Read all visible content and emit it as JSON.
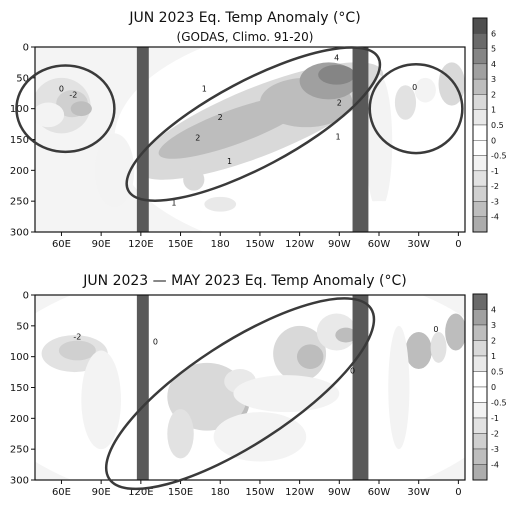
{
  "colors": {
    "anomaly_scale": [
      "#4d4d4d",
      "#6a6a6a",
      "#808080",
      "#999999",
      "#b3b3b3",
      "#cccccc",
      "#e3e3e3",
      "#ffffff",
      "#e6e6e6",
      "#d2d2d2",
      "#bdbdbd",
      "#a8a8a8",
      "#909090",
      "#747474",
      "#5a5a5a"
    ],
    "land_mask": "#595959",
    "contour": "#111111",
    "highlight_ellipse": "#3a3a3a"
  },
  "chart_data": [
    {
      "type": "heatmap",
      "title": "JUN 2023 Eq. Temp Anomaly (°C)",
      "subtitle": "(GODAS, Climo. 91-20)",
      "xlabel": "",
      "ylabel": "",
      "x_ticks": [
        "60E",
        "90E",
        "120E",
        "150E",
        "180",
        "150W",
        "120W",
        "90W",
        "60W",
        "30W",
        "0"
      ],
      "y_ticks": [
        "0",
        "50",
        "100",
        "150",
        "200",
        "250",
        "300"
      ],
      "ylim": [
        300,
        0
      ],
      "colorbar_ticks": [
        "6",
        "5",
        "4",
        "3",
        "2",
        "1",
        "0.5",
        "0",
        "-0.5",
        "-1",
        "-2",
        "-3",
        "-4"
      ],
      "contour_labels": [
        {
          "text": "0",
          "lon": 60,
          "depth": 72
        },
        {
          "text": "-2",
          "lon": 69,
          "depth": 82
        },
        {
          "text": "1",
          "lon": 168,
          "depth": 72
        },
        {
          "text": "2",
          "lon": 180,
          "depth": 118
        },
        {
          "text": "2",
          "lon": 163,
          "depth": 152
        },
        {
          "text": "1",
          "lon": 187,
          "depth": 190
        },
        {
          "text": "1",
          "lon": 145,
          "depth": 257
        },
        {
          "text": "4",
          "lon": 268,
          "depth": 22
        },
        {
          "text": "2",
          "lon": 270,
          "depth": 95
        },
        {
          "text": "1",
          "lon": 269,
          "depth": 150
        },
        {
          "text": "0",
          "lon": 327,
          "depth": 70
        }
      ],
      "highlights": [
        {
          "lon": 63,
          "depth": 100,
          "rlon": 37,
          "rdepth": 70
        },
        {
          "lon": 205,
          "depth": 125,
          "rlon": 107,
          "rdepth": 70,
          "rotate": -28
        },
        {
          "lon": 328,
          "depth": 100,
          "rlon": 35,
          "rdepth": 72
        }
      ]
    },
    {
      "type": "heatmap",
      "title": "JUN 2023 — MAY 2023 Eq. Temp Anomaly (°C)",
      "xlabel": "",
      "ylabel": "",
      "x_ticks": [
        "60E",
        "90E",
        "120E",
        "150E",
        "180",
        "150W",
        "120W",
        "90W",
        "60W",
        "30W",
        "0"
      ],
      "y_ticks": [
        "0",
        "50",
        "100",
        "150",
        "200",
        "250",
        "300"
      ],
      "ylim": [
        300,
        0
      ],
      "colorbar_ticks": [
        "4",
        "3",
        "2",
        "1",
        "0.5",
        "0",
        "-0.5",
        "-1",
        "-2",
        "-3",
        "-4"
      ],
      "contour_labels": [
        {
          "text": "-2",
          "lon": 72,
          "depth": 72
        },
        {
          "text": "0",
          "lon": 131,
          "depth": 80
        },
        {
          "text": "0",
          "lon": 280,
          "depth": 127
        },
        {
          "text": "0",
          "lon": 343,
          "depth": 60
        }
      ],
      "highlights": [
        {
          "lon": 195,
          "depth": 160,
          "rlon": 118,
          "rdepth": 83,
          "rotate": -33
        }
      ]
    }
  ]
}
